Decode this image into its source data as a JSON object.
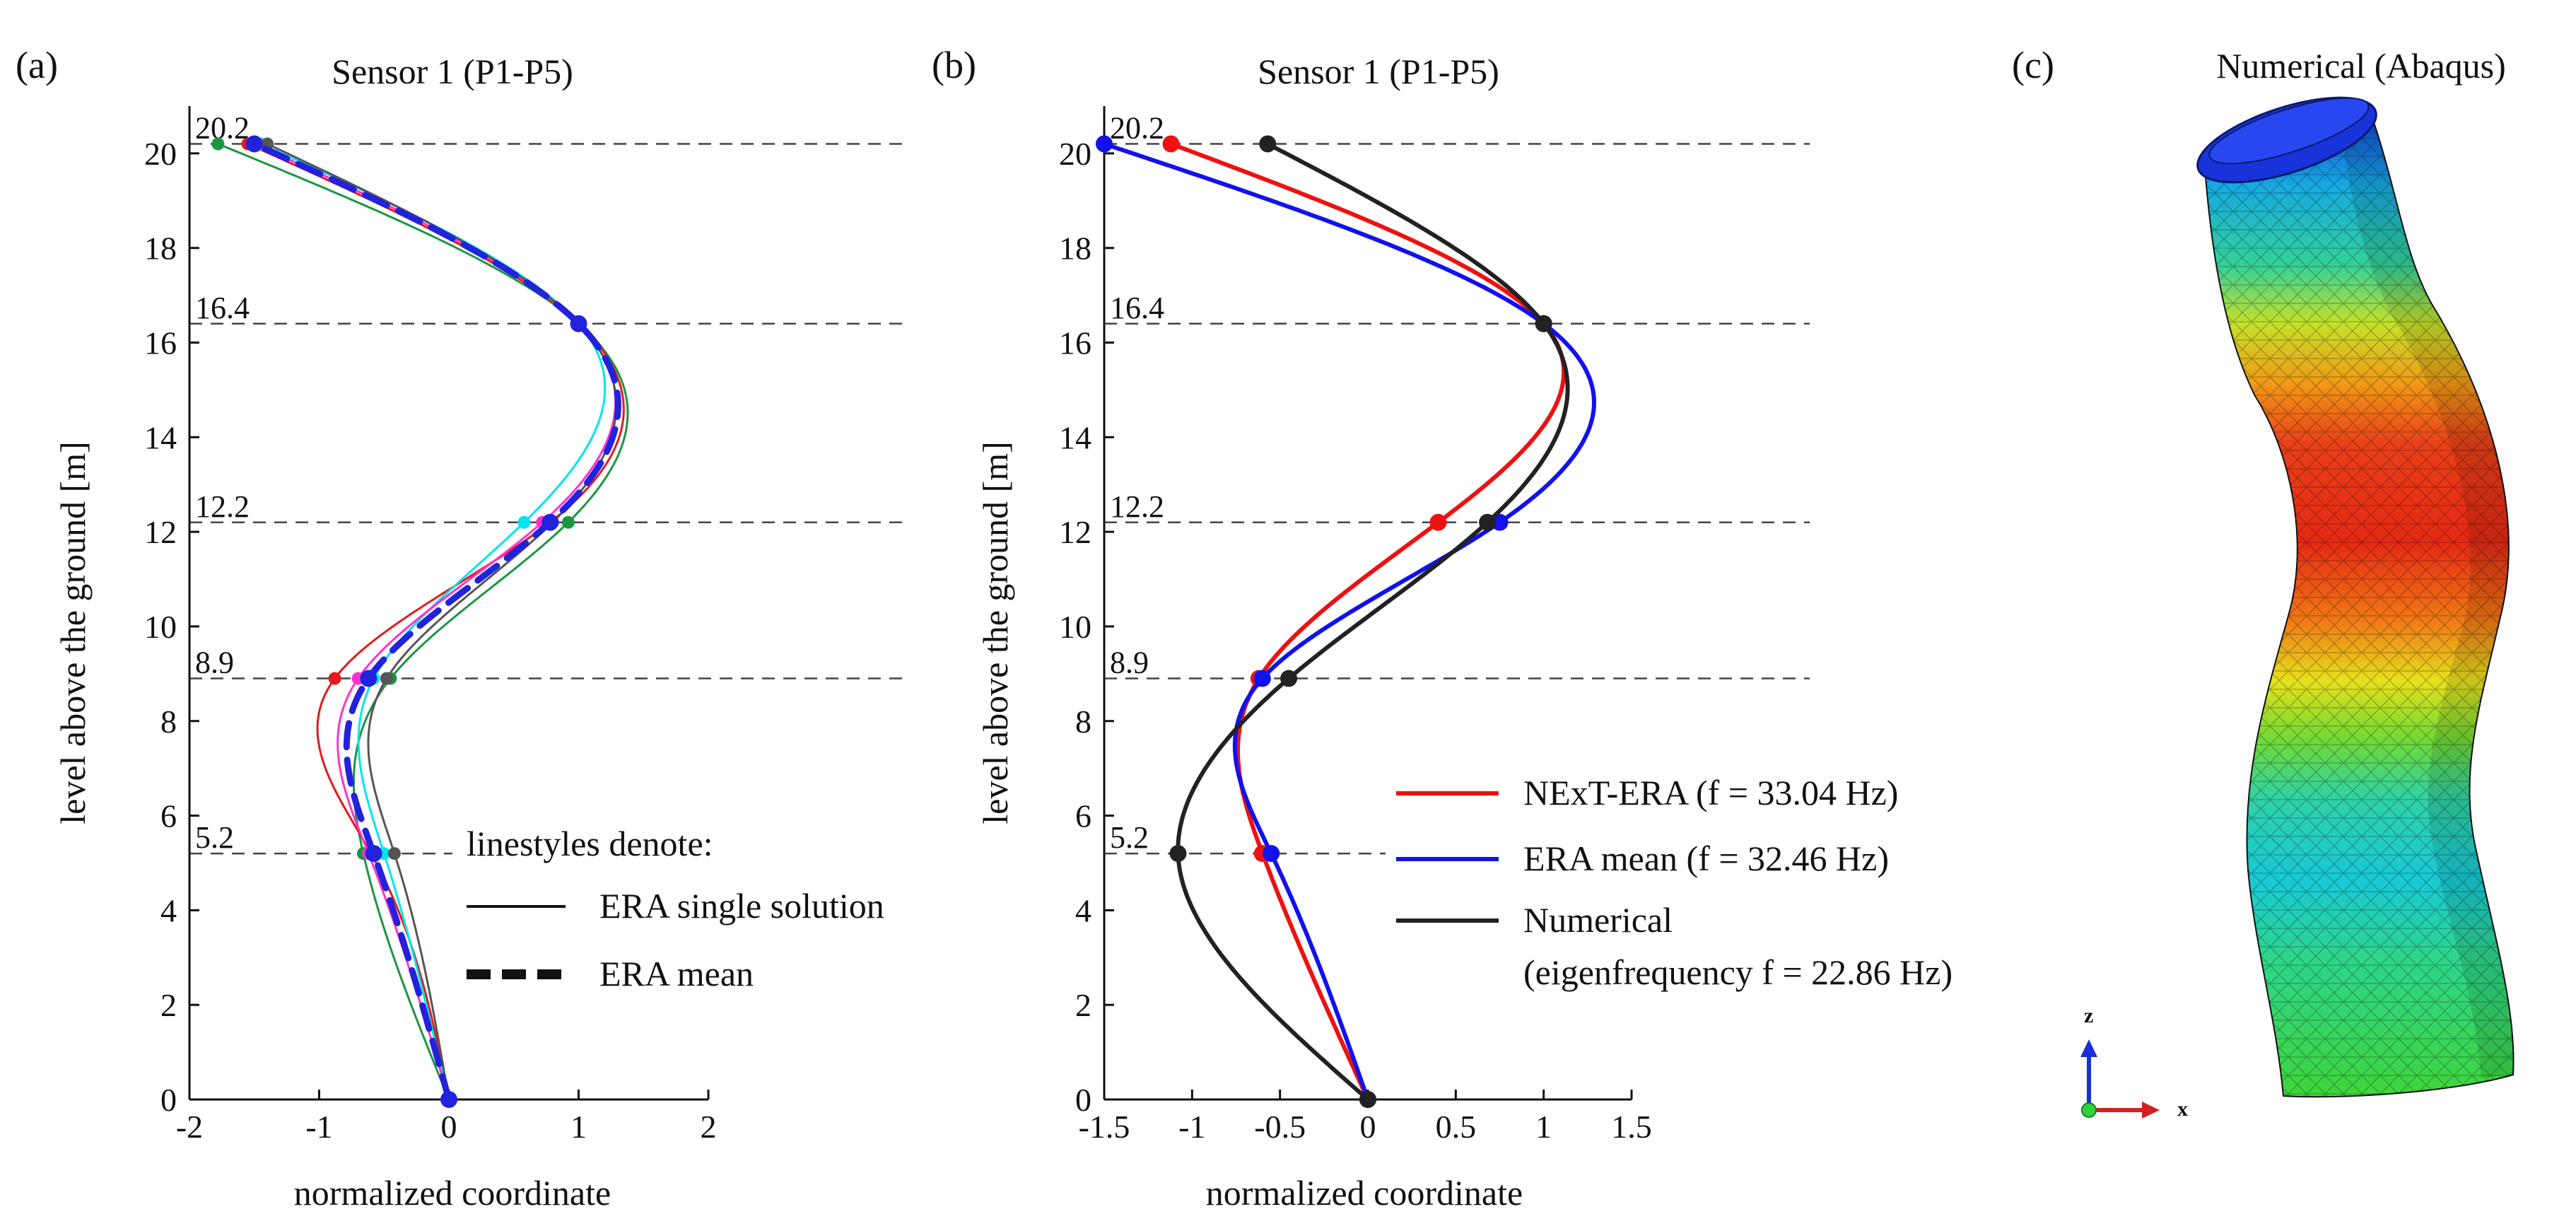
{
  "chart_data": [
    {
      "panel": "(a)",
      "type": "line",
      "title": "Sensor 1  (P1-P5)",
      "xlabel": "normalized coordinate",
      "ylabel": "level above the ground  [m]",
      "xlim": [
        -2,
        2
      ],
      "ylim": [
        0,
        21
      ],
      "xticks": [
        "-2",
        "-1",
        "0",
        "1",
        "2"
      ],
      "yticks": [
        "0",
        "2",
        "4",
        "6",
        "8",
        "10",
        "12",
        "14",
        "16",
        "18",
        "20"
      ],
      "levels": [
        {
          "y": 20.2,
          "label": "20.2"
        },
        {
          "y": 16.4,
          "label": "16.4"
        },
        {
          "y": 12.2,
          "label": "12.2"
        },
        {
          "y": 8.9,
          "label": "8.9"
        },
        {
          "y": 5.2,
          "label": "5.2"
        }
      ],
      "series": [
        {
          "name": "ERA single solution (green)",
          "color": "#1a9641",
          "style": "solid",
          "width": 3,
          "x": [
            0,
            -0.66,
            -0.45,
            0.92,
            1.0,
            -1.78
          ]
        },
        {
          "name": "ERA single solution (red)",
          "color": "#e41a1c",
          "style": "solid",
          "width": 3,
          "x": [
            0,
            -0.6,
            -0.88,
            0.78,
            1.0,
            -1.55
          ]
        },
        {
          "name": "ERA single solution (cyan)",
          "color": "#00e5ee",
          "style": "solid",
          "width": 3,
          "x": [
            0,
            -0.5,
            -0.58,
            0.58,
            1.0,
            -1.45
          ]
        },
        {
          "name": "ERA single solution (magenta)",
          "color": "#ff33cc",
          "style": "solid",
          "width": 3,
          "x": [
            0,
            -0.62,
            -0.7,
            0.72,
            1.0,
            -1.5
          ]
        },
        {
          "name": "ERA single solution (gray)",
          "color": "#555555",
          "style": "solid",
          "width": 3,
          "x": [
            0,
            -0.42,
            -0.48,
            0.8,
            1.0,
            -1.4
          ]
        },
        {
          "name": "ERA mean",
          "color": "#2222dd",
          "style": "dashed",
          "width": 9,
          "x": [
            0,
            -0.58,
            -0.62,
            0.78,
            1.0,
            -1.5
          ]
        }
      ],
      "legend": {
        "heading": "linestyles denote:",
        "items": [
          "ERA single solution",
          "ERA mean"
        ]
      }
    },
    {
      "panel": "(b)",
      "type": "line",
      "title": "Sensor 1  (P1-P5)",
      "xlabel": "normalized coordinate",
      "ylabel": "level above the ground  [m]",
      "xlim": [
        -1.5,
        1.5
      ],
      "ylim": [
        0,
        21
      ],
      "xticks": [
        "-1.5",
        "-1",
        "-0.5",
        "0",
        "0.5",
        "1",
        "1.5"
      ],
      "yticks": [
        "0",
        "2",
        "4",
        "6",
        "8",
        "10",
        "12",
        "14",
        "16",
        "18",
        "20"
      ],
      "levels": [
        {
          "y": 20.2,
          "label": "20.2"
        },
        {
          "y": 16.4,
          "label": "16.4"
        },
        {
          "y": 12.2,
          "label": "12.2"
        },
        {
          "y": 8.9,
          "label": "8.9"
        },
        {
          "y": 5.2,
          "label": "5.2"
        }
      ],
      "series": [
        {
          "name": "NExT-ERA  (f = 33.04 Hz)",
          "color": "#ee1111",
          "width": 6,
          "x": [
            0,
            -0.6,
            -0.62,
            0.4,
            1.0,
            -1.12
          ]
        },
        {
          "name": "ERA mean (f = 32.46 Hz)",
          "color": "#1111ee",
          "width": 6,
          "x": [
            0,
            -0.55,
            -0.6,
            0.75,
            1.0,
            -1.5
          ]
        },
        {
          "name": "Numerical",
          "name2": "(eigenfrequency f = 22.86 Hz)",
          "color": "#222222",
          "width": 6,
          "x": [
            0,
            -1.08,
            -0.45,
            0.68,
            1.0,
            -0.57
          ]
        }
      ]
    },
    {
      "panel": "(c)",
      "type": "other",
      "title": "Numerical (Abaqus)",
      "axis_triad": {
        "z": "z",
        "x": "x"
      }
    }
  ],
  "colors": {
    "fe_blue": "#1238d8",
    "fe_cyan": "#19c9d6",
    "fe_green": "#2fd23c",
    "fe_yellow": "#e5e11d",
    "fe_orange": "#f09a16",
    "fe_red": "#e52a14"
  }
}
